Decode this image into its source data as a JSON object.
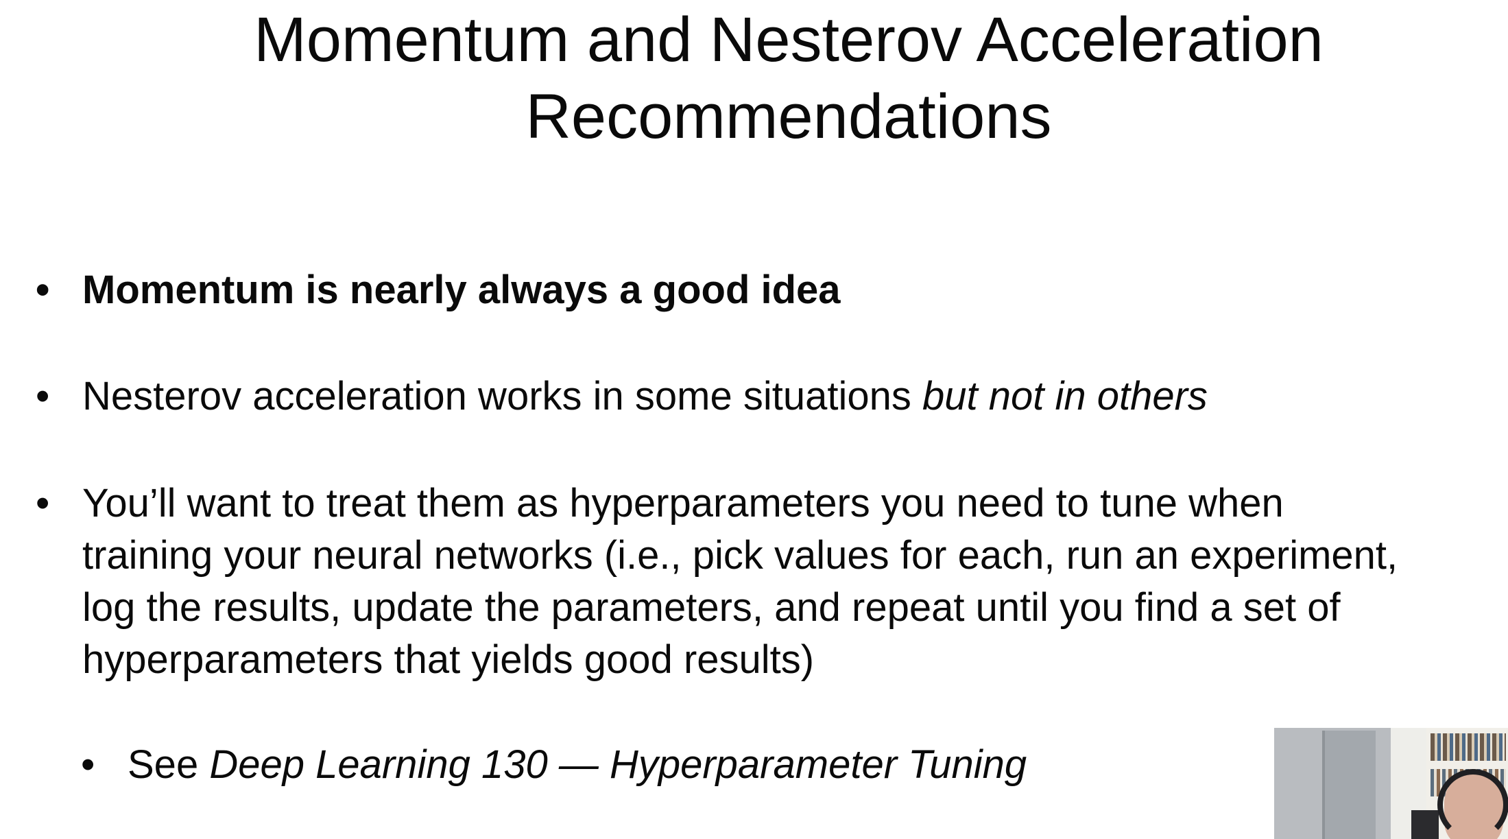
{
  "slide": {
    "title_line1": "Momentum and Nesterov Acceleration",
    "title_line2": "Recommendations",
    "bullets": [
      {
        "marker": "•",
        "text": "Momentum is nearly always a good idea"
      },
      {
        "marker": "•",
        "text": "Nesterov acceleration works in some situations ",
        "emphasis": "but not in others"
      },
      {
        "marker": "•",
        "lines": [
          "You’ll want to treat them as hyperparameters you need to tune when",
          "training your neural networks (i.e., pick values for each, run an experiment,",
          "log the results, update the parameters, and repeat until you find a set of",
          "hyperparameters that yields good results)"
        ]
      }
    ],
    "sub_bullet": {
      "marker": "•",
      "prefix": "See ",
      "emphasis": "Deep Learning 130 — Hyperparameter Tuning"
    }
  }
}
